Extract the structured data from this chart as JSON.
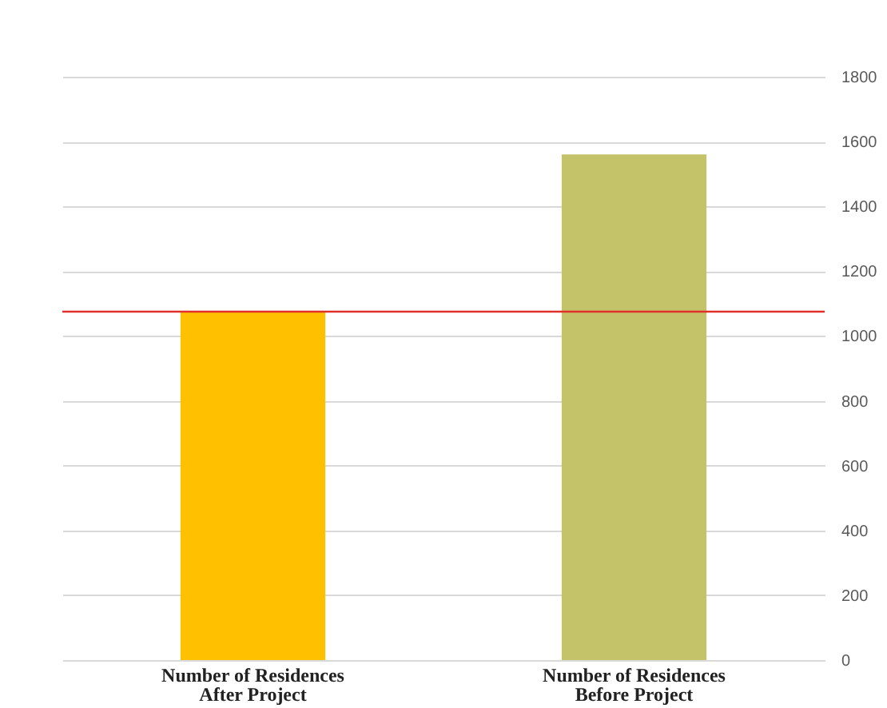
{
  "chart_data": {
    "type": "bar",
    "categories": [
      "Number of Residences After Project",
      "Number of Residences Before Project"
    ],
    "values": [
      1075,
      1560
    ],
    "colors": [
      "#ffc000",
      "#c4c36a"
    ],
    "ylim": [
      0,
      1800
    ],
    "yticks": [
      0,
      200,
      400,
      600,
      800,
      1000,
      1200,
      1400,
      1600,
      1800
    ],
    "grid": true,
    "ref_lines": [
      {
        "axis": "y",
        "value": 1075,
        "color": "#e0302a"
      }
    ]
  }
}
